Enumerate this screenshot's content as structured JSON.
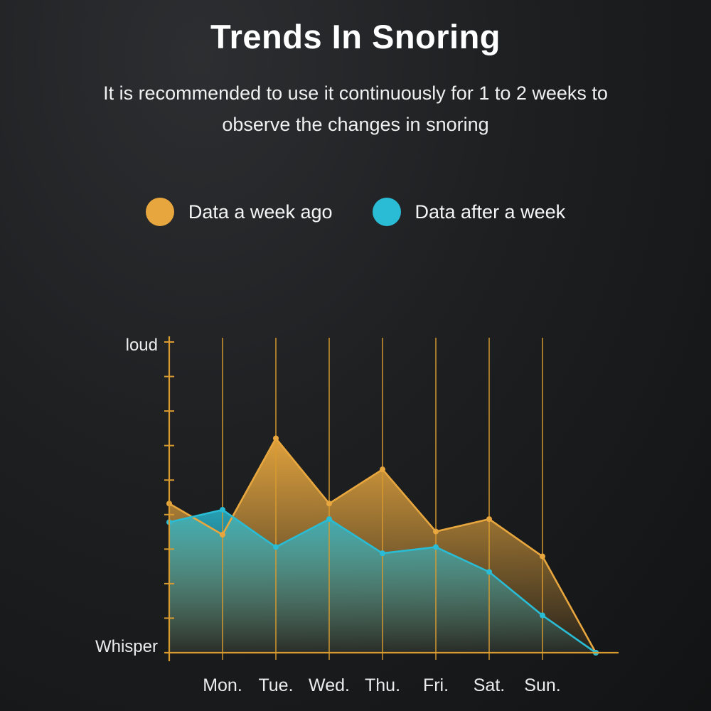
{
  "page": {
    "title": "Trends In Snoring",
    "subtitle": "It is recommended to use it continuously for 1 to 2 weeks to observe the changes in snoring"
  },
  "legend": {
    "items": [
      {
        "label": "Data a week ago",
        "color": "#E8A73E"
      },
      {
        "label": "Data after a week",
        "color": "#29BCD4"
      }
    ]
  },
  "chart_data": {
    "type": "area",
    "title": "Trends In Snoring",
    "categories": [
      "Mon.",
      "Tue.",
      "Wed.",
      "Thu.",
      "Fri.",
      "Sat.",
      "Sun."
    ],
    "x": [
      0,
      1,
      2,
      3,
      4,
      5,
      6,
      7,
      8
    ],
    "y_axis_labels": {
      "top": "loud",
      "bottom": "Whisper"
    },
    "ylim": [
      0,
      100
    ],
    "grid": "vertical",
    "grid_color": "#D99B2F",
    "axis_color": "#D99B2F",
    "legend_position": "top",
    "series": [
      {
        "name": "Data a week ago",
        "color": "#E8A73E",
        "values": [
          48,
          38,
          69,
          48,
          59,
          39,
          43,
          31,
          0
        ]
      },
      {
        "name": "Data after a week",
        "color": "#29BCD4",
        "values": [
          42,
          46,
          34,
          43,
          32,
          34,
          26,
          12,
          0
        ]
      }
    ]
  }
}
